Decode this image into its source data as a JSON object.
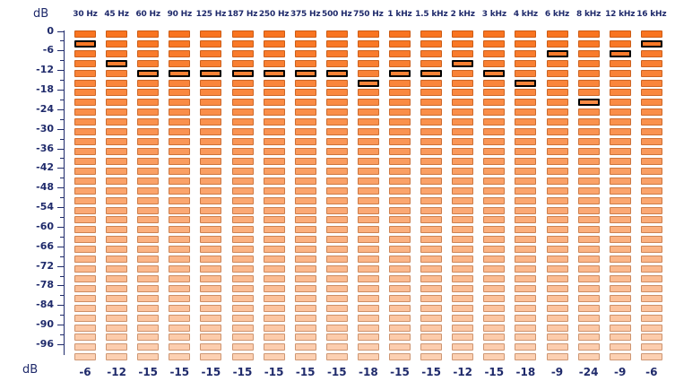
{
  "units": {
    "top": "dB",
    "bottom": "dB"
  },
  "scale": {
    "max": 0,
    "min": -96,
    "step": 6,
    "tick_labels": [
      "0",
      "-6",
      "-12",
      "-18",
      "-24",
      "-30",
      "-36",
      "-42",
      "-48",
      "-54",
      "-60",
      "-66",
      "-72",
      "-78",
      "-84",
      "-90",
      "-96"
    ]
  },
  "colors": {
    "segment_bright": "#f97420",
    "segment_pale": "#fcd0b2",
    "selected_border": "#000000",
    "text": "#1f2a6b"
  },
  "bands": [
    {
      "label": "30 Hz",
      "value": "-6"
    },
    {
      "label": "45 Hz",
      "value": "-12"
    },
    {
      "label": "60 Hz",
      "value": "-15"
    },
    {
      "label": "90 Hz",
      "value": "-15"
    },
    {
      "label": "125 Hz",
      "value": "-15"
    },
    {
      "label": "187 Hz",
      "value": "-15"
    },
    {
      "label": "250 Hz",
      "value": "-15"
    },
    {
      "label": "375 Hz",
      "value": "-15"
    },
    {
      "label": "500 Hz",
      "value": "-15"
    },
    {
      "label": "750 Hz",
      "value": "-18"
    },
    {
      "label": "1 kHz",
      "value": "-15"
    },
    {
      "label": "1.5 kHz",
      "value": "-15"
    },
    {
      "label": "2 kHz",
      "value": "-12"
    },
    {
      "label": "3 kHz",
      "value": "-15"
    },
    {
      "label": "4 kHz",
      "value": "-18"
    },
    {
      "label": "6 kHz",
      "value": "-9"
    },
    {
      "label": "8 kHz",
      "value": "-24"
    },
    {
      "label": "12 kHz",
      "value": "-9"
    },
    {
      "label": "16 kHz",
      "value": "-6"
    }
  ]
}
